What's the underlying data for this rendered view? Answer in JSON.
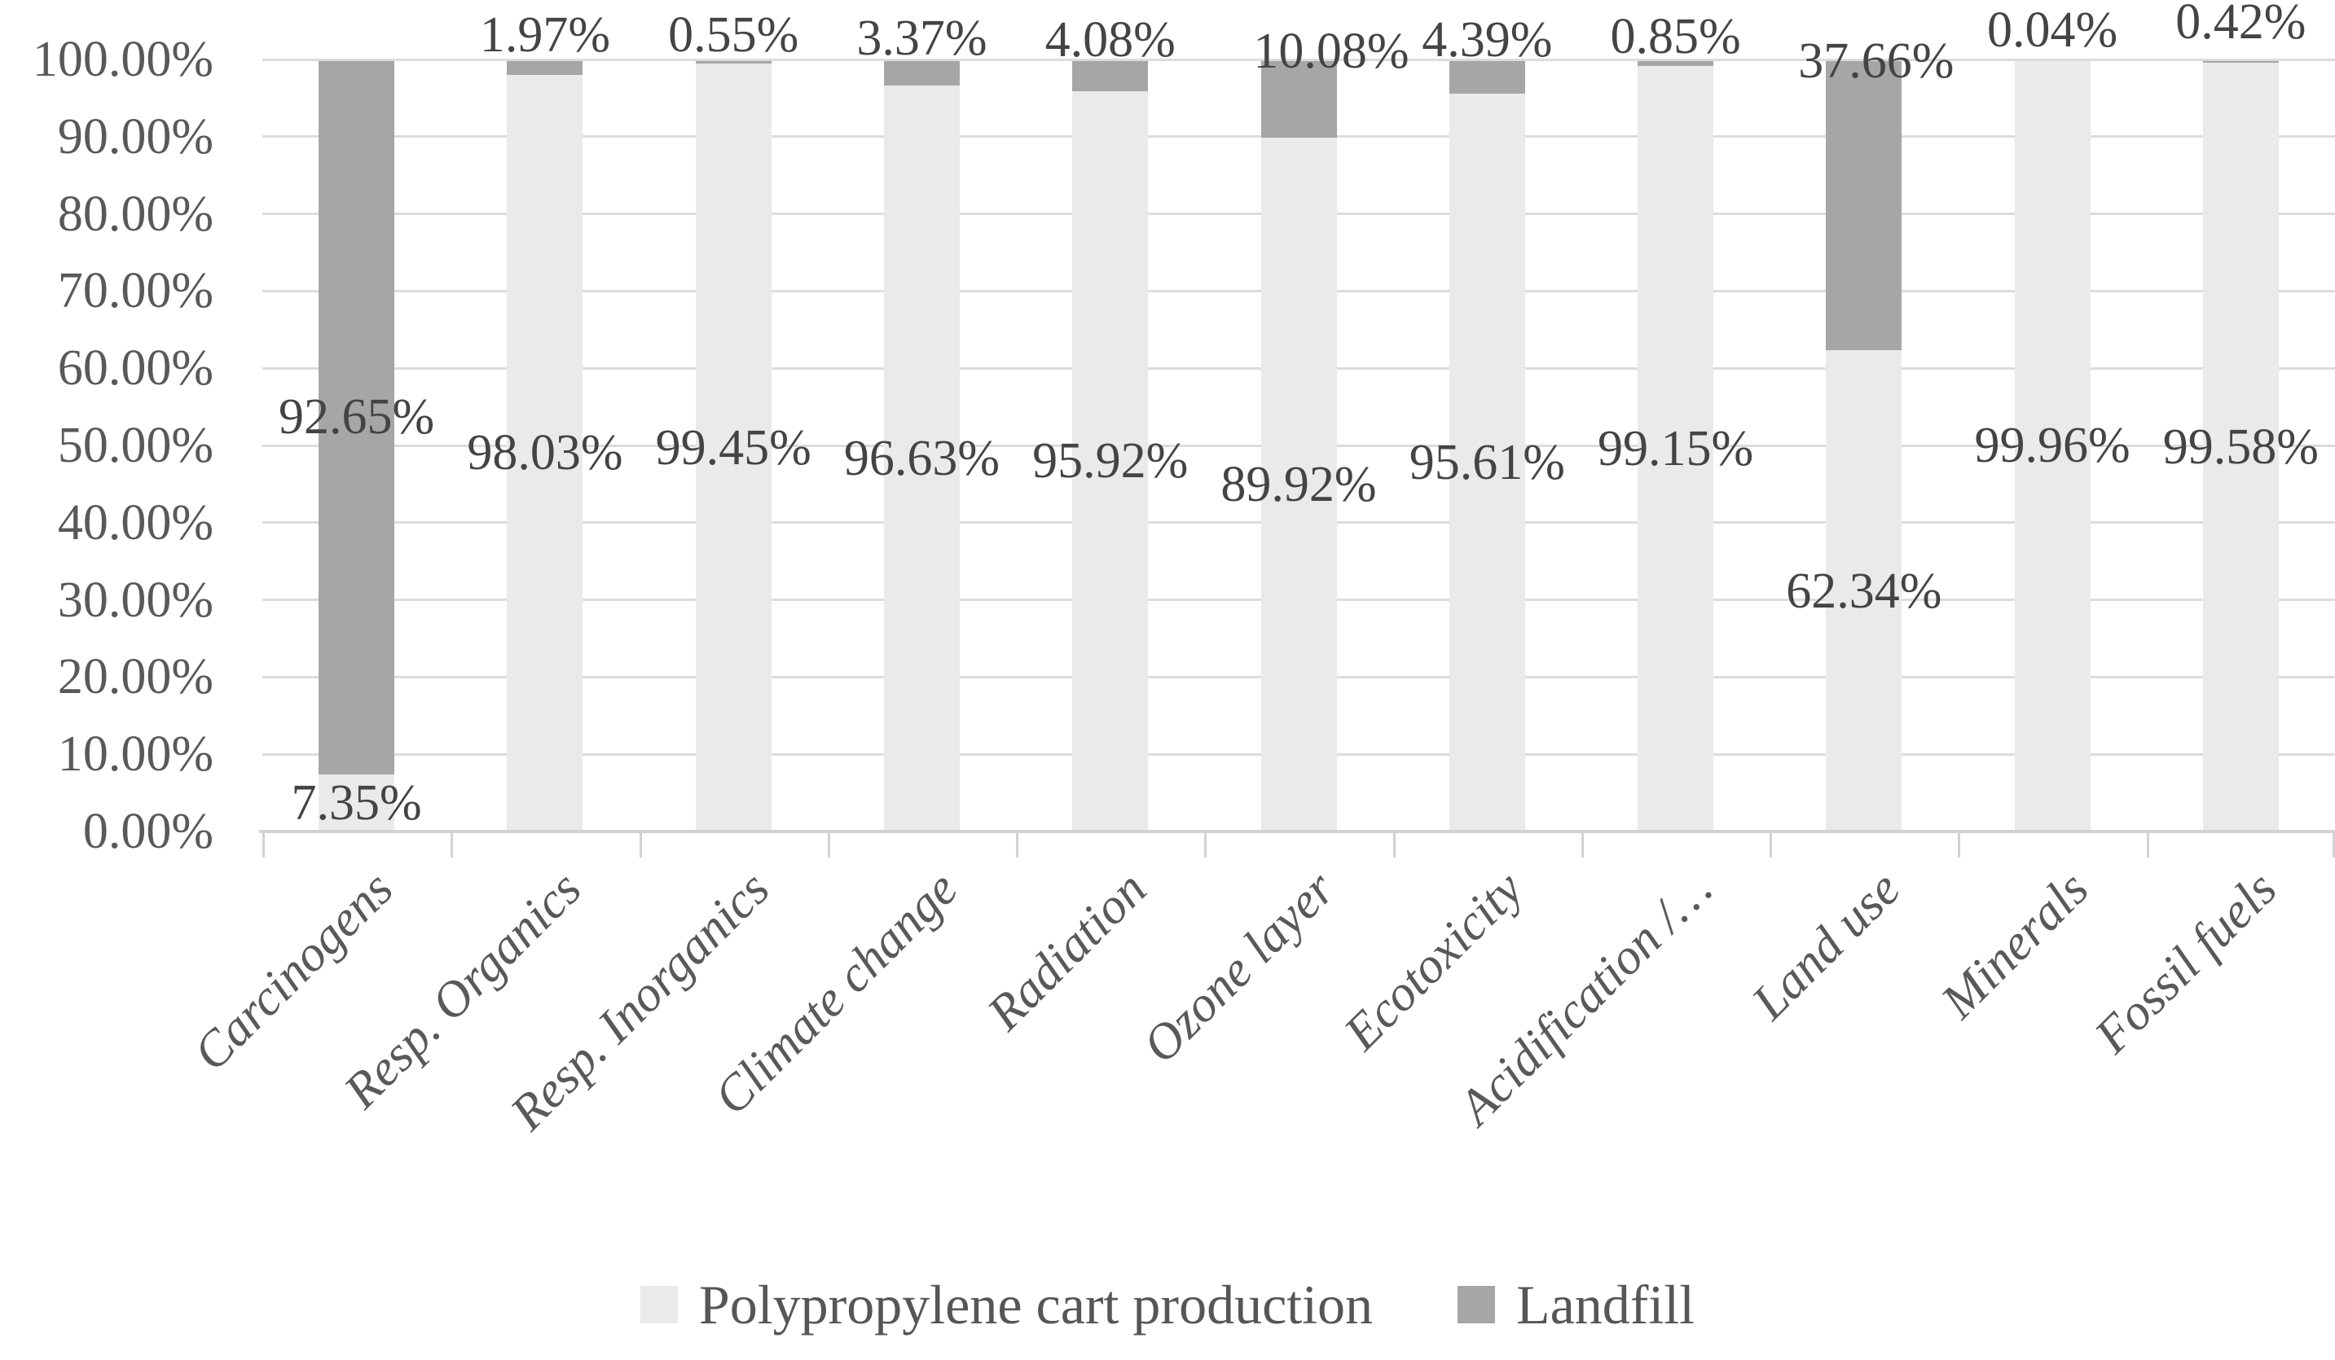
{
  "chart_data": {
    "type": "bar",
    "subtype": "stacked-100-percent",
    "title": "",
    "categories": [
      "Carcinogens",
      "Resp. Organics",
      "Resp. Inorganics",
      "Climate change",
      "Radiation",
      "Ozone layer",
      "Ecotoxicity",
      "Acidification /…",
      "Land use",
      "Minerals",
      "Fossil fuels"
    ],
    "series": [
      {
        "name": "Polypropylene cart production",
        "color": "#eaeaea",
        "values": [
          7.35,
          98.03,
          99.45,
          96.63,
          95.92,
          89.92,
          95.61,
          99.15,
          62.34,
          99.96,
          99.58
        ]
      },
      {
        "name": "Landfill",
        "color": "#a6a6a6",
        "values": [
          92.65,
          1.97,
          0.55,
          3.37,
          4.08,
          10.08,
          4.39,
          0.85,
          37.66,
          0.04,
          0.42
        ]
      }
    ],
    "data_labels": {
      "visible": true,
      "format": "0.00%"
    },
    "y_axis": {
      "min": 0,
      "max": 100,
      "step": 10,
      "tick_labels": [
        "0.00%",
        "10.00%",
        "20.00%",
        "30.00%",
        "40.00%",
        "50.00%",
        "60.00%",
        "70.00%",
        "80.00%",
        "90.00%",
        "100.00%"
      ]
    },
    "x_axis": {
      "label": ""
    },
    "grid": {
      "horizontal": true,
      "vertical": false
    },
    "legend_position": "bottom",
    "colors": {
      "gridline": "#dcdcdc",
      "axis_line": "#d2d2d2",
      "tick_label_text": "#595959",
      "category_label_text": "#595959",
      "data_label_text": "#444444",
      "background": "#ffffff"
    },
    "layout_hints": {
      "landfill_label_rule": "centered-in-segment if value >= 50, otherwise placed above plot top",
      "landfill_label_dx": [
        0,
        0,
        0,
        0,
        0,
        40,
        0,
        0,
        15,
        0,
        0
      ],
      "landfill_label_dy": [
        0,
        0,
        0,
        4,
        6,
        20,
        6,
        2,
        32,
        -6,
        -16
      ]
    }
  },
  "legend": {
    "items": [
      {
        "label": "Polypropylene cart production",
        "color": "#eaeaea"
      },
      {
        "label": "Landfill",
        "color": "#a6a6a6"
      }
    ]
  }
}
